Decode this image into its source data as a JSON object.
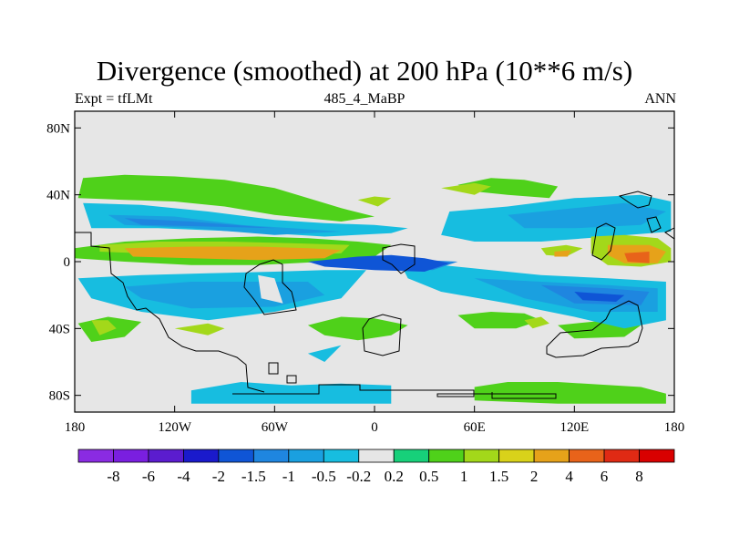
{
  "header": {
    "title": "Divergence (smoothed) at 200 hPa (10**6 m/s)",
    "left_label": "Expt = tfLMt",
    "center_label": "485_4_MaBP",
    "right_label": "ANN"
  },
  "chart_data": {
    "type": "heatmap",
    "title": "Divergence (smoothed) at 200 hPa (10**6 m/s)",
    "xlabel": "",
    "ylabel": "",
    "xlim": [
      -180,
      180
    ],
    "ylim": [
      -90,
      90
    ],
    "x_ticks": [
      {
        "value": -180,
        "label": "180"
      },
      {
        "value": -120,
        "label": "120W"
      },
      {
        "value": -60,
        "label": "60W"
      },
      {
        "value": 0,
        "label": "0"
      },
      {
        "value": 60,
        "label": "60E"
      },
      {
        "value": 120,
        "label": "120E"
      },
      {
        "value": 180,
        "label": "180"
      }
    ],
    "y_ticks": [
      {
        "value": 80,
        "label": "80N"
      },
      {
        "value": 40,
        "label": "40N"
      },
      {
        "value": 0,
        "label": "0"
      },
      {
        "value": -40,
        "label": "40S"
      },
      {
        "value": -80,
        "label": "80S"
      }
    ],
    "colorbar": {
      "labels": [
        "-8",
        "-6",
        "-4",
        "-2",
        "-1.5",
        "-1",
        "-0.5",
        "-0.2",
        "0.2",
        "0.5",
        "1",
        "1.5",
        "2",
        "4",
        "6",
        "8"
      ],
      "colors": [
        "#8a2be2",
        "#7a1fe0",
        "#5b1ccf",
        "#1a1acc",
        "#0f55d6",
        "#1f86e0",
        "#1aa0e0",
        "#17bde0",
        "#e6e6e6",
        "#17d07a",
        "#4fd11a",
        "#a3d81a",
        "#d9d21a",
        "#e6a21a",
        "#e8631a",
        "#e02a14",
        "#d90000"
      ]
    },
    "regions": [
      {
        "value": 0.5,
        "polygon": [
          [
            -175,
            50
          ],
          [
            -150,
            52
          ],
          [
            -120,
            51
          ],
          [
            -90,
            49
          ],
          [
            -60,
            44
          ],
          [
            -40,
            38
          ],
          [
            -20,
            32
          ],
          [
            0,
            27
          ],
          [
            -20,
            24
          ],
          [
            -60,
            28
          ],
          [
            -90,
            33
          ],
          [
            -120,
            36
          ],
          [
            -150,
            37
          ],
          [
            -178,
            38
          ]
        ]
      },
      {
        "value": 0.5,
        "polygon": [
          [
            -180,
            8
          ],
          [
            -150,
            12
          ],
          [
            -110,
            14
          ],
          [
            -70,
            15
          ],
          [
            -40,
            14
          ],
          [
            -10,
            12
          ],
          [
            10,
            10
          ],
          [
            0,
            3
          ],
          [
            -30,
            0
          ],
          [
            -70,
            -2
          ],
          [
            -110,
            -2
          ],
          [
            -150,
            0
          ],
          [
            -180,
            2
          ]
        ]
      },
      {
        "value": 0.5,
        "polygon": [
          [
            -40,
            -38
          ],
          [
            -20,
            -33
          ],
          [
            0,
            -34
          ],
          [
            20,
            -38
          ],
          [
            10,
            -44
          ],
          [
            -10,
            -47
          ],
          [
            -30,
            -44
          ]
        ]
      },
      {
        "value": 0.5,
        "polygon": [
          [
            -178,
            -37
          ],
          [
            -160,
            -33
          ],
          [
            -140,
            -36
          ],
          [
            -150,
            -45
          ],
          [
            -170,
            -48
          ]
        ]
      },
      {
        "value": 0.5,
        "polygon": [
          [
            50,
            -32
          ],
          [
            70,
            -30
          ],
          [
            90,
            -31
          ],
          [
            100,
            -35
          ],
          [
            85,
            -40
          ],
          [
            60,
            -40
          ]
        ]
      },
      {
        "value": 0.5,
        "polygon": [
          [
            110,
            -38
          ],
          [
            140,
            -35
          ],
          [
            160,
            -38
          ],
          [
            150,
            -45
          ],
          [
            120,
            -46
          ]
        ]
      },
      {
        "value": 0.5,
        "polygon": [
          [
            50,
            46
          ],
          [
            70,
            50
          ],
          [
            90,
            49
          ],
          [
            110,
            45
          ],
          [
            105,
            38
          ],
          [
            80,
            40
          ],
          [
            60,
            42
          ]
        ]
      },
      {
        "value": 0.5,
        "polygon": [
          [
            60,
            -75
          ],
          [
            80,
            -72
          ],
          [
            110,
            -72
          ],
          [
            160,
            -75
          ],
          [
            175,
            -79
          ],
          [
            175,
            -85
          ],
          [
            110,
            -85
          ],
          [
            60,
            -83
          ]
        ]
      },
      {
        "value": 1,
        "polygon": [
          [
            -170,
            -35
          ],
          [
            -160,
            -35
          ],
          [
            -155,
            -40
          ],
          [
            -165,
            -44
          ]
        ]
      },
      {
        "value": 1,
        "polygon": [
          [
            -120,
            -40
          ],
          [
            -100,
            -37
          ],
          [
            -90,
            -40
          ],
          [
            -100,
            -44
          ]
        ]
      },
      {
        "value": 1,
        "polygon": [
          [
            40,
            44
          ],
          [
            60,
            47
          ],
          [
            70,
            45
          ],
          [
            60,
            40
          ]
        ]
      },
      {
        "value": 1,
        "polygon": [
          [
            -10,
            37
          ],
          [
            0,
            39
          ],
          [
            10,
            38
          ],
          [
            2,
            33
          ]
        ]
      },
      {
        "value": 1,
        "polygon": [
          [
            90,
            -35
          ],
          [
            100,
            -33
          ],
          [
            105,
            -37
          ],
          [
            95,
            -40
          ]
        ]
      },
      {
        "value": -0.5,
        "polygon": [
          [
            -175,
            35
          ],
          [
            -140,
            34
          ],
          [
            -100,
            30
          ],
          [
            -60,
            25
          ],
          [
            -30,
            23
          ],
          [
            0,
            22
          ],
          [
            20,
            20
          ],
          [
            10,
            17
          ],
          [
            -30,
            15
          ],
          [
            -80,
            18
          ],
          [
            -130,
            20
          ],
          [
            -170,
            20
          ]
        ]
      },
      {
        "value": -0.5,
        "polygon": [
          [
            -178,
            -10
          ],
          [
            -140,
            -8
          ],
          [
            -100,
            -7
          ],
          [
            -60,
            -6
          ],
          [
            -30,
            -5
          ],
          [
            -5,
            -5
          ],
          [
            -20,
            -22
          ],
          [
            -60,
            -30
          ],
          [
            -100,
            -35
          ],
          [
            -140,
            -30
          ],
          [
            -170,
            -22
          ]
        ]
      },
      {
        "value": -0.5,
        "polygon": [
          [
            15,
            0
          ],
          [
            40,
            -2
          ],
          [
            70,
            -5
          ],
          [
            100,
            -8
          ],
          [
            140,
            -10
          ],
          [
            175,
            -12
          ],
          [
            175,
            -35
          ],
          [
            150,
            -40
          ],
          [
            120,
            -33
          ],
          [
            80,
            -25
          ],
          [
            40,
            -18
          ],
          [
            20,
            -10
          ]
        ]
      },
      {
        "value": -0.5,
        "polygon": [
          [
            45,
            30
          ],
          [
            80,
            33
          ],
          [
            120,
            38
          ],
          [
            160,
            40
          ],
          [
            178,
            36
          ],
          [
            178,
            18
          ],
          [
            140,
            15
          ],
          [
            100,
            12
          ],
          [
            60,
            12
          ],
          [
            40,
            16
          ]
        ]
      },
      {
        "value": -0.5,
        "polygon": [
          [
            -110,
            -77
          ],
          [
            -80,
            -72
          ],
          [
            -50,
            -74
          ],
          [
            -20,
            -73
          ],
          [
            10,
            -74
          ],
          [
            10,
            -85
          ],
          [
            -110,
            -85
          ]
        ]
      },
      {
        "value": -0.5,
        "polygon": [
          [
            -40,
            -55
          ],
          [
            -20,
            -50
          ],
          [
            -30,
            -60
          ]
        ]
      },
      {
        "value": -1,
        "polygon": [
          [
            -160,
            28
          ],
          [
            -120,
            27
          ],
          [
            -80,
            22
          ],
          [
            -50,
            20
          ],
          [
            -20,
            18
          ],
          [
            -60,
            16
          ],
          [
            -110,
            20
          ],
          [
            -150,
            22
          ]
        ]
      },
      {
        "value": -1,
        "polygon": [
          [
            -150,
            -15
          ],
          [
            -110,
            -12
          ],
          [
            -70,
            -12
          ],
          [
            -40,
            -12
          ],
          [
            -30,
            -20
          ],
          [
            -60,
            -27
          ],
          [
            -110,
            -28
          ],
          [
            -140,
            -22
          ]
        ]
      },
      {
        "value": -1,
        "polygon": [
          [
            60,
            -10
          ],
          [
            100,
            -12
          ],
          [
            140,
            -14
          ],
          [
            170,
            -16
          ],
          [
            170,
            -30
          ],
          [
            130,
            -30
          ],
          [
            90,
            -22
          ]
        ]
      },
      {
        "value": -1,
        "polygon": [
          [
            80,
            28
          ],
          [
            120,
            32
          ],
          [
            150,
            35
          ],
          [
            175,
            30
          ],
          [
            160,
            22
          ],
          [
            120,
            20
          ],
          [
            90,
            20
          ]
        ]
      },
      {
        "value": -1.5,
        "polygon": [
          [
            -150,
            26
          ],
          [
            -110,
            24
          ],
          [
            -60,
            20
          ],
          [
            -100,
            21
          ],
          [
            -140,
            22
          ]
        ]
      },
      {
        "value": -1.5,
        "polygon": [
          [
            100,
            -14
          ],
          [
            140,
            -16
          ],
          [
            165,
            -18
          ],
          [
            160,
            -26
          ],
          [
            120,
            -25
          ]
        ]
      },
      {
        "value": -1.5,
        "polygon": [
          [
            10,
            2
          ],
          [
            30,
            1
          ],
          [
            50,
            0
          ],
          [
            35,
            -5
          ],
          [
            15,
            -4
          ]
        ]
      },
      {
        "value": -2,
        "polygon": [
          [
            -40,
            0
          ],
          [
            -10,
            3
          ],
          [
            10,
            4
          ],
          [
            30,
            2
          ],
          [
            45,
            -1
          ],
          [
            30,
            -6
          ],
          [
            0,
            -5
          ],
          [
            -30,
            -3
          ]
        ]
      },
      {
        "value": -2,
        "polygon": [
          [
            120,
            -18
          ],
          [
            150,
            -20
          ],
          [
            145,
            -24
          ],
          [
            125,
            -23
          ]
        ]
      },
      {
        "value": 1,
        "polygon": [
          [
            -165,
            10
          ],
          [
            -130,
            12
          ],
          [
            -90,
            12
          ],
          [
            -50,
            11
          ],
          [
            -15,
            10
          ],
          [
            -20,
            5
          ],
          [
            -60,
            3
          ],
          [
            -100,
            4
          ],
          [
            -140,
            5
          ],
          [
            -165,
            6
          ]
        ]
      },
      {
        "value": 1,
        "polygon": [
          [
            130,
            15
          ],
          [
            150,
            16
          ],
          [
            170,
            14
          ],
          [
            178,
            8
          ],
          [
            178,
            0
          ],
          [
            160,
            -3
          ],
          [
            140,
            -2
          ],
          [
            130,
            5
          ]
        ]
      },
      {
        "value": 1,
        "polygon": [
          [
            100,
            8
          ],
          [
            115,
            10
          ],
          [
            125,
            8
          ],
          [
            115,
            3
          ],
          [
            103,
            4
          ]
        ]
      },
      {
        "value": 2,
        "polygon": [
          [
            -150,
            8
          ],
          [
            -110,
            9
          ],
          [
            -70,
            9
          ],
          [
            -40,
            8
          ],
          [
            -20,
            7
          ],
          [
            -30,
            2
          ],
          [
            -70,
            1
          ],
          [
            -110,
            2
          ],
          [
            -145,
            3
          ]
        ]
      },
      {
        "value": 2,
        "polygon": [
          [
            140,
            10
          ],
          [
            165,
            10
          ],
          [
            175,
            6
          ],
          [
            170,
            -1
          ],
          [
            150,
            -1
          ],
          [
            140,
            4
          ]
        ]
      },
      {
        "value": 2,
        "polygon": [
          [
            108,
            6
          ],
          [
            118,
            7
          ],
          [
            116,
            3
          ],
          [
            108,
            3
          ]
        ]
      },
      {
        "value": 4,
        "polygon": [
          [
            150,
            5
          ],
          [
            165,
            6
          ],
          [
            165,
            -1
          ],
          [
            152,
            0
          ]
        ]
      },
      {
        "value": -0.2,
        "polygon": [
          [
            -70,
            -8
          ],
          [
            -60,
            -10
          ],
          [
            -55,
            -25
          ],
          [
            -68,
            -22
          ]
        ]
      }
    ]
  }
}
